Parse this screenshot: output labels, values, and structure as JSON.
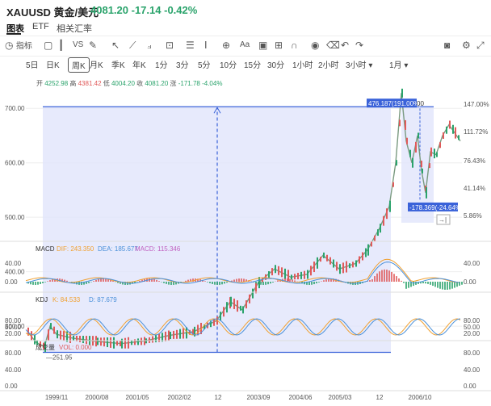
{
  "header": {
    "symbol": "XAUUSD 黄金/美元",
    "price": "4081.20",
    "change": "-17.14",
    "change_pct": "-0.42%"
  },
  "tabs": [
    "图表",
    "ETF",
    "相关汇率"
  ],
  "toolbar": {
    "indicator_label": "指标",
    "vs_label": "VS",
    "text_tool": "Aa"
  },
  "timeframes": [
    "5日",
    "日K",
    "周K",
    "月K",
    "季K",
    "年K",
    "1分",
    "3分",
    "5分",
    "10分",
    "15分",
    "30分",
    "1小时",
    "2小时",
    "3小时 ▾",
    "1月 ▾"
  ],
  "selected_timeframe": "周K",
  "ohlc": {
    "open_label": "开",
    "open": "4252.98",
    "high_label": "高",
    "high": "4381.42",
    "low_label": "低",
    "low": "4004.20",
    "close_label": "收",
    "close": "4081.20",
    "chg_label": "涨",
    "chg": "-171.78",
    "chg_pct": "-4.04%"
  },
  "price_axis": [
    "700.00",
    "600.00",
    "500.00",
    "400.00",
    "300.00"
  ],
  "pct_axis": [
    "147.00%",
    "111.72%",
    "76.43%",
    "41.14%",
    "5.86%"
  ],
  "measure": {
    "up_label": "476.187(191.00%)",
    "up_suffix": "00",
    "down_label": "-178.369(-24.64%)",
    "low_marker": "251.95",
    "collapse": "→|"
  },
  "macd": {
    "title": "MACD",
    "dif_label": "DIF: 243.350",
    "dea_label": "DEA: 185.677",
    "macd_label": "MACD: 115.346",
    "axis": [
      "40.00",
      "0.00"
    ]
  },
  "kdj": {
    "title": "KDJ",
    "k_label": "K: 84.533",
    "d_label": "D: 87.679",
    "axis": [
      "80.00",
      "50.00",
      "20.00"
    ]
  },
  "vol": {
    "title": "成交量",
    "vol_label": "VOL: 0.000",
    "axis": [
      "80.00",
      "40.00",
      "0.00"
    ]
  },
  "x_axis": [
    "1999/11",
    "2000/08",
    "2001/05",
    "2002/02",
    "12",
    "2003/09",
    "2004/06",
    "2005/03",
    "12",
    "2006/10"
  ],
  "colors": {
    "up": "#e05a5a",
    "down": "#2aa36b",
    "measure": "#3a62d9",
    "dif": "#f0a030",
    "dea": "#4a90d9",
    "macd": "#c060c0"
  }
}
